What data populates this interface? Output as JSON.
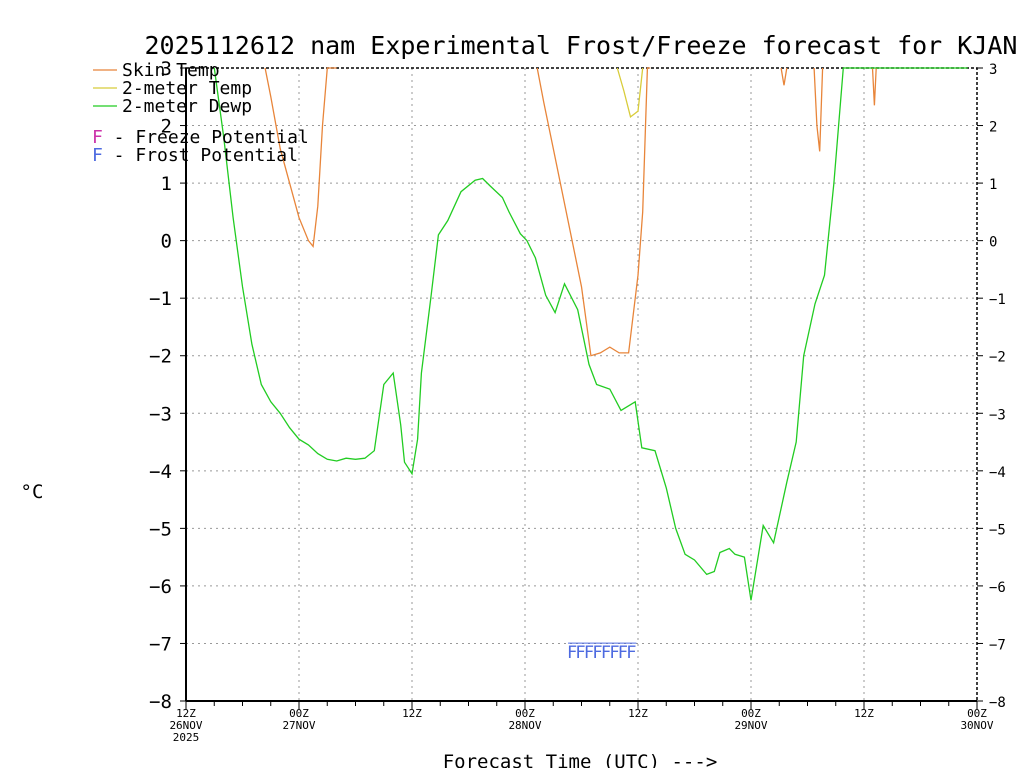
{
  "chart_data": {
    "type": "line",
    "title": "2025112612 nam Experimental Frost/Freeze forecast for KJAN",
    "xlabel": "Forecast Time (UTC) --->",
    "ylabel": "°C",
    "xunit": "forecast hours from 2025-11-26 12Z",
    "xlim": [
      0,
      84
    ],
    "ylim": [
      -8,
      3
    ],
    "yticks": [
      -8,
      -7,
      -6,
      -5,
      -4,
      -3,
      -2,
      -1,
      0,
      1,
      2,
      3
    ],
    "xticks": [
      {
        "hour": 0,
        "lines": [
          "12Z",
          "26NOV",
          "2025"
        ]
      },
      {
        "hour": 12,
        "lines": [
          "00Z",
          "27NOV"
        ]
      },
      {
        "hour": 24,
        "lines": [
          "12Z"
        ]
      },
      {
        "hour": 36,
        "lines": [
          "00Z",
          "28NOV"
        ]
      },
      {
        "hour": 48,
        "lines": [
          "12Z"
        ]
      },
      {
        "hour": 60,
        "lines": [
          "00Z",
          "29NOV"
        ]
      },
      {
        "hour": 72,
        "lines": [
          "12Z"
        ]
      },
      {
        "hour": 84,
        "lines": [
          "00Z",
          "30NOV"
        ]
      }
    ],
    "grid": true,
    "legend_position": "top-left",
    "series": [
      {
        "name": "Skin Temp",
        "color": "#e8853a",
        "x": [
          8.4,
          9,
          10,
          11,
          12,
          13,
          13.5,
          14,
          14.5,
          15,
          15.6,
          16
        ],
        "y": [
          3.0,
          2.5,
          1.6,
          1.0,
          0.4,
          0.0,
          -0.1,
          0.6,
          2.0,
          3.0,
          3.0,
          3.0
        ],
        "extra_segments": [
          {
            "x": [
              37.3,
              38,
              39,
              40,
              41,
              42,
              43,
              44,
              45,
              46,
              47,
              48,
              48.5,
              49,
              49.3
            ],
            "y": [
              3.0,
              2.4,
              1.6,
              0.8,
              0.0,
              -0.8,
              -2.0,
              -1.95,
              -1.85,
              -1.95,
              -1.95,
              -0.6,
              0.5,
              3.0,
              3.0
            ]
          },
          {
            "x": [
              63.2,
              63.5,
              63.8
            ],
            "y": [
              3.0,
              2.7,
              3.0
            ]
          },
          {
            "x": [
              66.7,
              67.0,
              67.3,
              67.6
            ],
            "y": [
              3.0,
              2.0,
              1.55,
              3.0
            ]
          },
          {
            "x": [
              72.9,
              73.1,
              73.3
            ],
            "y": [
              3.0,
              2.35,
              3.0
            ]
          }
        ]
      },
      {
        "name": "2-meter Temp",
        "color": "#d8cc3a",
        "x": [
          45.8,
          46.5,
          47.2,
          48,
          48.5
        ],
        "y": [
          3.0,
          2.6,
          2.15,
          2.25,
          3.0
        ]
      },
      {
        "name": "2-meter Dewp",
        "color": "#22cc22",
        "x": [
          3.0,
          4,
          5,
          6,
          7,
          8,
          9,
          10,
          11,
          12,
          13,
          14,
          15,
          16,
          17,
          18,
          19,
          20,
          21,
          22,
          22.8,
          23.2,
          24,
          24.6,
          25.0,
          26.0,
          26.8,
          27.8,
          29.2,
          30.7,
          31.5,
          32.3,
          33.6,
          34.3,
          35.5,
          36.2,
          37.1,
          38.2,
          39.2,
          40.2,
          41.6,
          42.8,
          43.6,
          45.0,
          46.2,
          47.7,
          48.4,
          49.8,
          51.0,
          52.0,
          53.0,
          54.0,
          55.3,
          56.1,
          56.7,
          57.7,
          58.3,
          59.3,
          60.0,
          61.3,
          62.4,
          63.8,
          64.8,
          65.6,
          66.8,
          67.8,
          68.8,
          69.8,
          70.7,
          71.7,
          72.5,
          73.5,
          74.3,
          75.5,
          77.0,
          78.8,
          79.9,
          81.0,
          82.4,
          83.0
        ],
        "y": [
          3.0,
          1.8,
          0.4,
          -0.8,
          -1.8,
          -2.5,
          -2.8,
          -3.0,
          -3.25,
          -3.45,
          -3.55,
          -3.7,
          -3.8,
          -3.83,
          -3.78,
          -3.8,
          -3.78,
          -3.65,
          -2.5,
          -2.3,
          -3.2,
          -3.85,
          -4.05,
          -3.45,
          -2.3,
          -1.0,
          0.1,
          0.35,
          0.85,
          1.05,
          1.08,
          0.95,
          0.75,
          0.5,
          0.12,
          0.0,
          -0.3,
          -0.95,
          -1.25,
          -0.75,
          -1.2,
          -2.15,
          -2.5,
          -2.58,
          -2.95,
          -2.8,
          -3.6,
          -3.65,
          -4.3,
          -5.0,
          -5.45,
          -5.55,
          -5.8,
          -5.75,
          -5.42,
          -5.35,
          -5.45,
          -5.5,
          -6.25,
          -4.95,
          -5.25,
          -4.2,
          -3.5,
          -2.0,
          -1.1,
          -0.6,
          1.0,
          3.0,
          3.0,
          3.0,
          3.0,
          3.0,
          3.0,
          3.0,
          3.0,
          3.0,
          3.0,
          3.0,
          3.0,
          3.0
        ]
      }
    ],
    "frost_freeze": {
      "frost_label": "F - Frost Potential",
      "freeze_label": "F - Freeze Potential",
      "frost_color": "#4d6ae0",
      "freeze_color": "#cc33aa",
      "frost_marks": {
        "hours": [
          41,
          41.9,
          42.8,
          43.7,
          44.6,
          45.5,
          46.4,
          47.3
        ],
        "level": -7.15,
        "text": "F"
      }
    }
  }
}
